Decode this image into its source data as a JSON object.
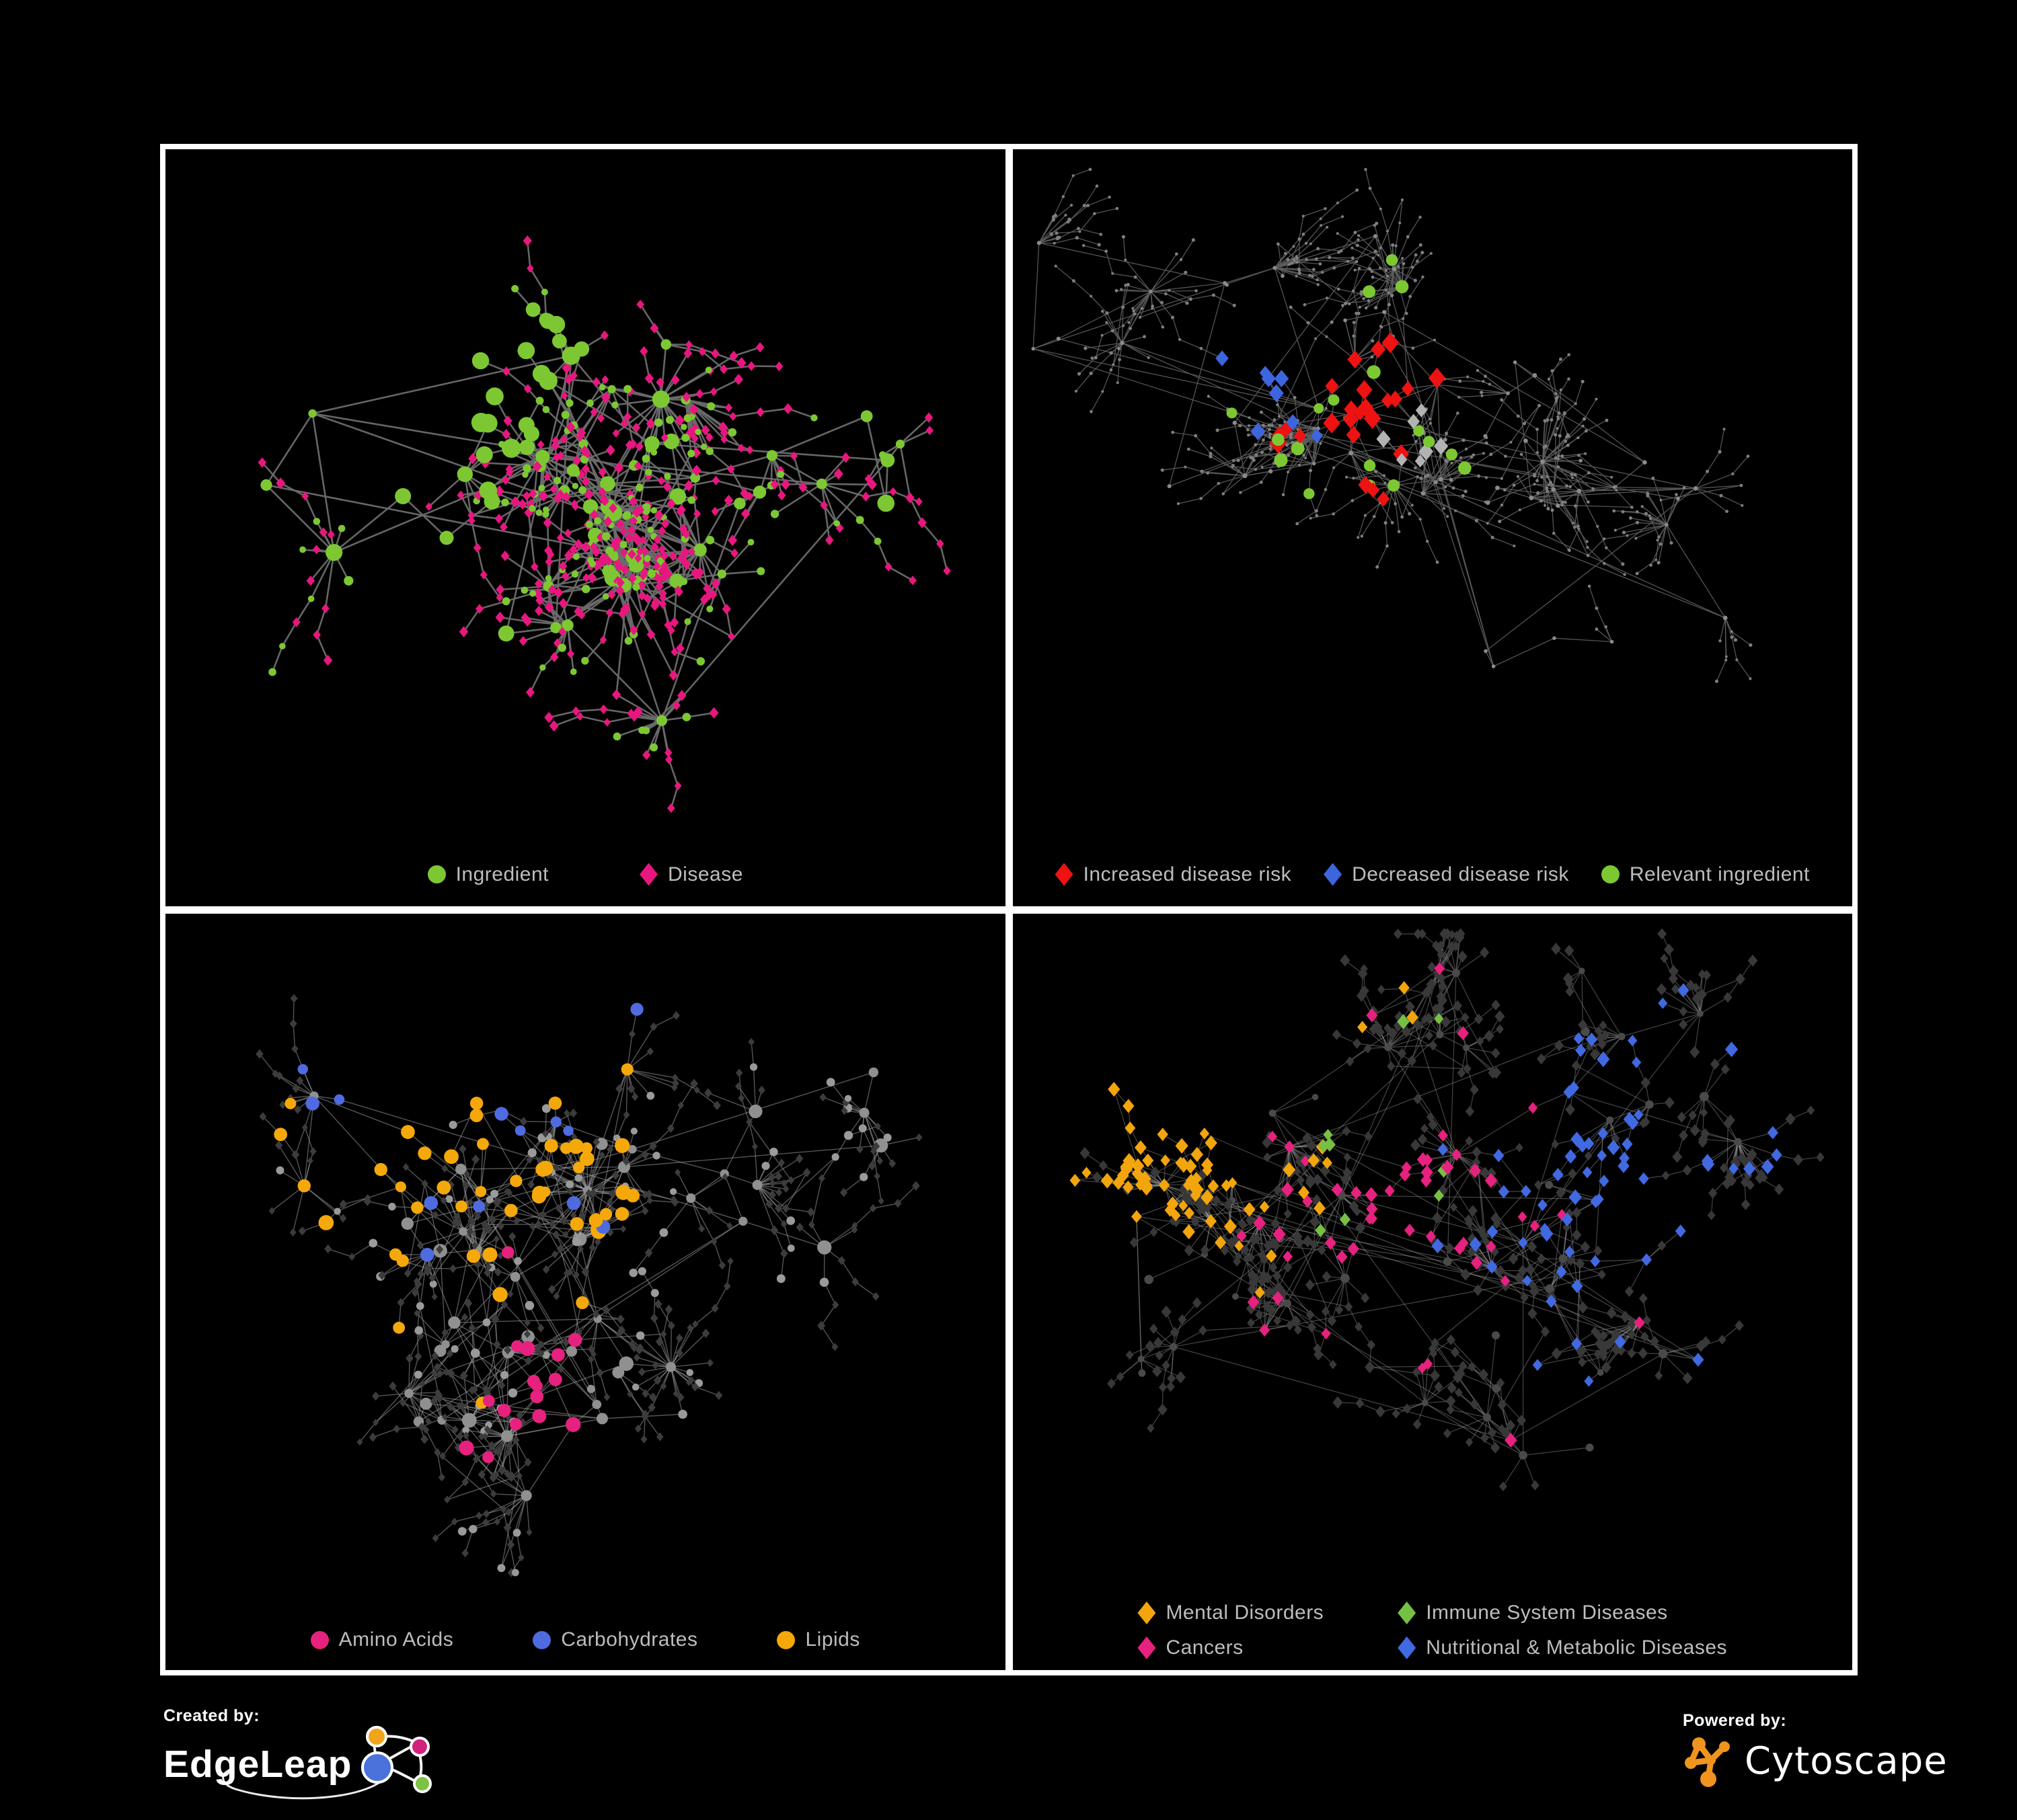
{
  "colors": {
    "background": "#000000",
    "frame": "#ffffff",
    "legend_text": "#bdbdbd",
    "edgeleap_blue": "#4a72d8",
    "edgeleap_orange": "#f2a51a",
    "edgeleap_magenta": "#d1217d",
    "edgeleap_green": "#7dc242",
    "cytoscape_orange": "#f0941f"
  },
  "footer": {
    "created_by_label": "Created by:",
    "created_by_brand": "EdgeLeap",
    "powered_by_label": "Powered by:",
    "powered_by_brand": "Cytoscape"
  },
  "panels": [
    {
      "name": "ingredient-disease-network",
      "legend": [
        {
          "label": "Ingredient",
          "shape": "circle",
          "color": "#7dc832"
        },
        {
          "label": "Disease",
          "shape": "diamond",
          "color": "#e8177f"
        }
      ],
      "network": {
        "seed": 11,
        "clusters": 7,
        "hubs": 52,
        "leaves": 500,
        "leaf_dist": 55,
        "chain_prob": 0.3,
        "extra_edges": 60,
        "edge": {
          "color": "#6b6b6b",
          "width": 2.6,
          "opacity": 0.95
        },
        "hub_style": {
          "shape": "circle",
          "color": "#7dc832",
          "min": 6,
          "max": 13
        },
        "leaf_styles": [
          {
            "shape": "diamond",
            "color": "#e8177f",
            "size": 6.5,
            "weight": 0.74
          },
          {
            "shape": "circle",
            "color": "#7dc832",
            "size": 5.5,
            "weight": 0.26
          }
        ],
        "highlights": [
          {
            "shape": "circle",
            "color": "#7dc832",
            "size": 13,
            "count": 12,
            "bias": [
              0.33,
              0.37
            ],
            "scatter": 0.5
          },
          {
            "shape": "circle",
            "color": "#7dc832",
            "size": 12,
            "count": 10,
            "bias": [
              0.44,
              0.28
            ],
            "scatter": 0.5
          }
        ]
      }
    },
    {
      "name": "disease-risk-network",
      "legend": [
        {
          "label": "Increased disease risk",
          "shape": "diamond",
          "color": "#ee1212"
        },
        {
          "label": "Decreased disease risk",
          "shape": "diamond",
          "color": "#3d66de"
        },
        {
          "label": "Relevant ingredient",
          "shape": "circle",
          "color": "#7dc832"
        }
      ],
      "network": {
        "seed": 7,
        "clusters": 8,
        "hubs": 58,
        "leaves": 620,
        "leaf_dist": 46,
        "chain_prob": 0.5,
        "extra_edges": 50,
        "edge": {
          "color": "#5d5d5d",
          "width": 1.3,
          "opacity": 0.9
        },
        "hub_style": {
          "shape": "circle",
          "color": "#8b8b8b",
          "min": 2.6,
          "max": 3.6
        },
        "leaf_styles": [
          {
            "shape": "circle",
            "color": "#7f7f7f",
            "size": 2.3,
            "weight": 1
          }
        ],
        "highlights": [
          {
            "shape": "diamond",
            "color": "#ee1212",
            "size": 11.5,
            "count": 24,
            "bias": [
              0.42,
              0.38
            ],
            "scatter": 1.7
          },
          {
            "shape": "diamond",
            "color": "#3d66de",
            "size": 10,
            "count": 8,
            "bias": [
              0.3,
              0.33
            ],
            "scatter": 2.8
          },
          {
            "shape": "diamond",
            "color": "#b3b3b3",
            "size": 9.5,
            "count": 7,
            "bias": [
              0.45,
              0.42
            ],
            "scatter": 1.9
          },
          {
            "shape": "circle",
            "color": "#7dc832",
            "size": 8.5,
            "count": 18,
            "bias": [
              0.4,
              0.36
            ],
            "scatter": 2.3
          }
        ]
      }
    },
    {
      "name": "compound-class-network",
      "legend": [
        {
          "label": "Amino Acids",
          "shape": "circle",
          "color": "#e6217e"
        },
        {
          "label": "Carbohydrates",
          "shape": "circle",
          "color": "#4f6be0"
        },
        {
          "label": "Lipids",
          "shape": "circle",
          "color": "#f5a80a"
        }
      ],
      "network": {
        "seed": 21,
        "clusters": 7,
        "hubs": 55,
        "leaves": 540,
        "leaf_dist": 50,
        "chain_prob": 0.33,
        "extra_edges": 80,
        "edge": {
          "color": "#9b9b9b",
          "width": 1.4,
          "opacity": 0.55
        },
        "hub_style": {
          "shape": "circle",
          "color": "#909090",
          "min": 6,
          "max": 11
        },
        "leaf_styles": [
          {
            "shape": "diamond",
            "color": "#3c3c3c",
            "size": 5.5,
            "weight": 0.82
          },
          {
            "shape": "circle",
            "color": "#9a9a9a",
            "size": 6,
            "weight": 0.18
          }
        ],
        "highlights": [
          {
            "shape": "circle",
            "color": "#f5a80a",
            "size": 9.5,
            "count": 48,
            "bias": [
              0.36,
              0.25
            ],
            "scatter": 2.4
          },
          {
            "shape": "circle",
            "color": "#e6217e",
            "size": 9.5,
            "count": 16,
            "bias": [
              0.45,
              0.7
            ],
            "scatter": 4.5
          },
          {
            "shape": "circle",
            "color": "#4f6be0",
            "size": 9,
            "count": 13,
            "bias": [
              0.33,
              0.2
            ],
            "scatter": 2.2
          }
        ]
      }
    },
    {
      "name": "disease-class-network",
      "legend": [
        {
          "label": "Mental Disorders",
          "shape": "diamond",
          "color": "#f2a50c"
        },
        {
          "label": "Immune System Diseases",
          "shape": "diamond",
          "color": "#76c043"
        },
        {
          "label": "Cancers",
          "shape": "diamond",
          "color": "#e6217e"
        },
        {
          "label": "Nutritional & Metabolic Diseases",
          "shape": "diamond",
          "color": "#4169e1"
        }
      ],
      "network": {
        "seed": 5,
        "clusters": 8,
        "hubs": 62,
        "leaves": 640,
        "leaf_dist": 44,
        "chain_prob": 0.25,
        "extra_edges": 120,
        "edge": {
          "color": "#9a9a9a",
          "width": 1.2,
          "opacity": 0.45
        },
        "hub_style": {
          "shape": "circle",
          "color": "#4a4a4a",
          "min": 4.5,
          "max": 7
        },
        "leaf_styles": [
          {
            "shape": "diamond",
            "color": "#383838",
            "size": 7,
            "weight": 1
          }
        ],
        "highlights": [
          {
            "shape": "diamond",
            "color": "#f2a50c",
            "size": 8.5,
            "count": 70,
            "bias": [
              0.16,
              0.3
            ],
            "scatter": 1.5
          },
          {
            "shape": "diamond",
            "color": "#e6217e",
            "size": 8.5,
            "count": 52,
            "bias": [
              0.46,
              0.42
            ],
            "scatter": 1.9
          },
          {
            "shape": "diamond",
            "color": "#4169e1",
            "size": 8.5,
            "count": 64,
            "bias": [
              0.72,
              0.42
            ],
            "scatter": 2.7
          },
          {
            "shape": "diamond",
            "color": "#76c043",
            "size": 8.5,
            "count": 9,
            "bias": [
              0.45,
              0.35
            ],
            "scatter": 4.0
          }
        ]
      }
    }
  ]
}
